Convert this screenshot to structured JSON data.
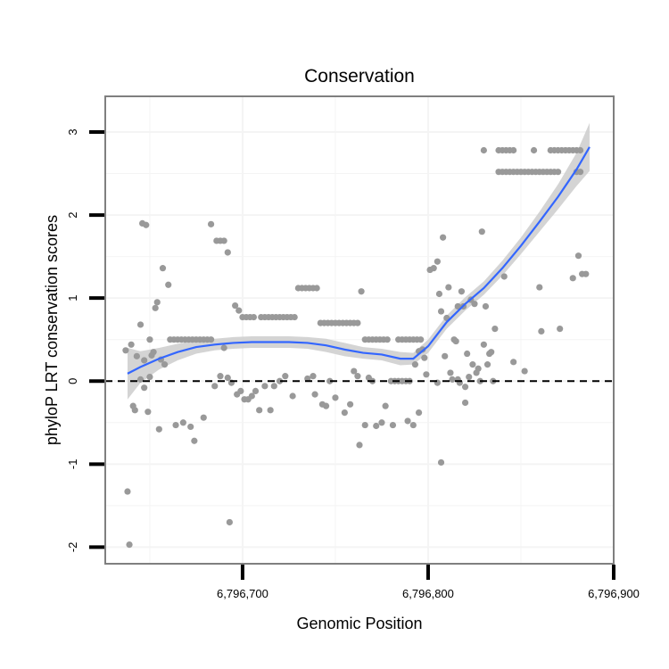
{
  "chart_data": {
    "type": "scatter",
    "title": "Conservation",
    "xlabel": "Genomic Position",
    "ylabel": "phyloP LRT conservation scores",
    "xlim": [
      6796626,
      6796900
    ],
    "ylim": [
      -2.2,
      3.43
    ],
    "x_ticks": [
      6796700,
      6796800,
      6796900
    ],
    "x_tick_labels": [
      "6,796,700",
      "6,796,800",
      "6,796,900"
    ],
    "y_ticks": [
      -2,
      -1,
      0,
      1,
      2,
      3
    ],
    "y_tick_labels": [
      "-2",
      "-1",
      "0",
      "1",
      "2",
      "3"
    ],
    "reference_line": {
      "y": 0,
      "style": "dashed"
    },
    "colors": {
      "points": "#999999",
      "smooth_line": "#3366FF",
      "ribbon": "#cccccc",
      "grid": "#f4f4f4",
      "panel_border": "#7f7f7f"
    },
    "smooth": {
      "x": [
        6796638,
        6796645,
        6796655,
        6796665,
        6796675,
        6796685,
        6796695,
        6796705,
        6796715,
        6796725,
        6796735,
        6796745,
        6796755,
        6796765,
        6796775,
        6796785,
        6796792,
        6796800,
        6796810,
        6796820,
        6796830,
        6796840,
        6796850,
        6796860,
        6796870,
        6796880,
        6796887
      ],
      "y": [
        0.09,
        0.17,
        0.27,
        0.35,
        0.41,
        0.44,
        0.46,
        0.47,
        0.47,
        0.47,
        0.46,
        0.43,
        0.38,
        0.34,
        0.32,
        0.27,
        0.27,
        0.42,
        0.71,
        0.93,
        1.12,
        1.36,
        1.63,
        1.92,
        2.22,
        2.55,
        2.82
      ],
      "lower": [
        -0.22,
        -0.02,
        0.14,
        0.25,
        0.33,
        0.37,
        0.39,
        0.4,
        0.4,
        0.4,
        0.39,
        0.35,
        0.3,
        0.27,
        0.25,
        0.19,
        0.2,
        0.34,
        0.63,
        0.85,
        1.04,
        1.27,
        1.53,
        1.8,
        2.07,
        2.35,
        2.53
      ],
      "upper": [
        0.4,
        0.36,
        0.4,
        0.45,
        0.49,
        0.51,
        0.53,
        0.54,
        0.54,
        0.54,
        0.53,
        0.51,
        0.46,
        0.41,
        0.39,
        0.35,
        0.34,
        0.5,
        0.79,
        1.01,
        1.2,
        1.45,
        1.73,
        2.04,
        2.37,
        2.75,
        3.11
      ]
    },
    "points": [
      [
        6796638,
        -1.33
      ],
      [
        6796639,
        -1.97
      ],
      [
        6796640,
        0.44
      ],
      [
        6796637,
        0.37
      ],
      [
        6796641,
        -0.3
      ],
      [
        6796642,
        -0.35
      ],
      [
        6796643,
        0.3
      ],
      [
        6796645,
        0.68
      ],
      [
        6796646,
        1.9
      ],
      [
        6796648,
        1.88
      ],
      [
        6796647,
        0.25
      ],
      [
        6796649,
        -0.37
      ],
      [
        6796650,
        0.5
      ],
      [
        6796651,
        0.31
      ],
      [
        6796652,
        0.35
      ],
      [
        6796653,
        0.88
      ],
      [
        6796654,
        0.95
      ],
      [
        6796655,
        -0.58
      ],
      [
        6796657,
        1.36
      ],
      [
        6796660,
        1.16
      ],
      [
        6796645,
        0.02
      ],
      [
        6796650,
        0.05
      ],
      [
        6796647,
        -0.08
      ],
      [
        6796658,
        0.2
      ],
      [
        6796656,
        0.26
      ],
      [
        6796661,
        0.5
      ],
      [
        6796663,
        0.5
      ],
      [
        6796665,
        0.5
      ],
      [
        6796667,
        0.5
      ],
      [
        6796669,
        0.5
      ],
      [
        6796671,
        0.5
      ],
      [
        6796673,
        0.5
      ],
      [
        6796675,
        0.5
      ],
      [
        6796677,
        0.5
      ],
      [
        6796679,
        0.5
      ],
      [
        6796681,
        0.5
      ],
      [
        6796683,
        0.5
      ],
      [
        6796664,
        -0.53
      ],
      [
        6796668,
        -0.5
      ],
      [
        6796672,
        -0.55
      ],
      [
        6796674,
        -0.72
      ],
      [
        6796679,
        -0.44
      ],
      [
        6796683,
        1.89
      ],
      [
        6796686,
        1.69
      ],
      [
        6796688,
        1.69
      ],
      [
        6796690,
        1.69
      ],
      [
        6796692,
        1.55
      ],
      [
        6796685,
        -0.06
      ],
      [
        6796688,
        0.06
      ],
      [
        6796690,
        0.4
      ],
      [
        6796692,
        0.04
      ],
      [
        6796694,
        -0.02
      ],
      [
        6796693,
        -1.7
      ],
      [
        6796696,
        0.91
      ],
      [
        6796698,
        0.85
      ],
      [
        6796697,
        -0.16
      ],
      [
        6796699,
        -0.12
      ],
      [
        6796701,
        -0.22
      ],
      [
        6796703,
        -0.22
      ],
      [
        6796705,
        -0.18
      ],
      [
        6796707,
        -0.12
      ],
      [
        6796709,
        -0.35
      ],
      [
        6796712,
        -0.06
      ],
      [
        6796715,
        -0.35
      ],
      [
        6796700,
        0.77
      ],
      [
        6796702,
        0.77
      ],
      [
        6796704,
        0.77
      ],
      [
        6796706,
        0.77
      ],
      [
        6796710,
        0.77
      ],
      [
        6796712,
        0.77
      ],
      [
        6796714,
        0.77
      ],
      [
        6796716,
        0.77
      ],
      [
        6796718,
        0.77
      ],
      [
        6796720,
        0.77
      ],
      [
        6796722,
        0.77
      ],
      [
        6796724,
        0.77
      ],
      [
        6796726,
        0.77
      ],
      [
        6796728,
        0.77
      ],
      [
        6796717,
        -0.06
      ],
      [
        6796720,
        0.0
      ],
      [
        6796723,
        0.06
      ],
      [
        6796727,
        -0.18
      ],
      [
        6796730,
        1.12
      ],
      [
        6796732,
        1.12
      ],
      [
        6796734,
        1.12
      ],
      [
        6796736,
        1.12
      ],
      [
        6796738,
        1.12
      ],
      [
        6796740,
        1.12
      ],
      [
        6796735,
        0.03
      ],
      [
        6796738,
        0.06
      ],
      [
        6796739,
        -0.16
      ],
      [
        6796743,
        -0.28
      ],
      [
        6796745,
        -0.3
      ],
      [
        6796742,
        0.7
      ],
      [
        6796744,
        0.7
      ],
      [
        6796746,
        0.7
      ],
      [
        6796748,
        0.7
      ],
      [
        6796750,
        0.7
      ],
      [
        6796752,
        0.7
      ],
      [
        6796754,
        0.7
      ],
      [
        6796756,
        0.7
      ],
      [
        6796758,
        0.7
      ],
      [
        6796760,
        0.7
      ],
      [
        6796762,
        0.7
      ],
      [
        6796747,
        0.0
      ],
      [
        6796750,
        -0.2
      ],
      [
        6796755,
        -0.38
      ],
      [
        6796758,
        -0.28
      ],
      [
        6796760,
        0.12
      ],
      [
        6796762,
        0.06
      ],
      [
        6796764,
        1.08
      ],
      [
        6796763,
        -0.77
      ],
      [
        6796766,
        -0.53
      ],
      [
        6796766,
        0.5
      ],
      [
        6796768,
        0.5
      ],
      [
        6796770,
        0.5
      ],
      [
        6796772,
        0.5
      ],
      [
        6796774,
        0.5
      ],
      [
        6796776,
        0.5
      ],
      [
        6796778,
        0.5
      ],
      [
        6796768,
        0.04
      ],
      [
        6796770,
        0.0
      ],
      [
        6796772,
        -0.54
      ],
      [
        6796775,
        -0.5
      ],
      [
        6796777,
        -0.3
      ],
      [
        6796780,
        0.0
      ],
      [
        6796782,
        0.0
      ],
      [
        6796784,
        0.0
      ],
      [
        6796786,
        0.0
      ],
      [
        6796788,
        0.0
      ],
      [
        6796790,
        0.0
      ],
      [
        6796784,
        0.5
      ],
      [
        6796786,
        0.5
      ],
      [
        6796788,
        0.5
      ],
      [
        6796790,
        0.5
      ],
      [
        6796792,
        0.5
      ],
      [
        6796794,
        0.5
      ],
      [
        6796796,
        0.5
      ],
      [
        6796781,
        -0.53
      ],
      [
        6796789,
        -0.48
      ],
      [
        6796792,
        -0.53
      ],
      [
        6796795,
        -0.38
      ],
      [
        6796793,
        0.2
      ],
      [
        6796795,
        0.36
      ],
      [
        6796797,
        0.38
      ],
      [
        6796798,
        0.28
      ],
      [
        6796799,
        0.08
      ],
      [
        6796801,
        1.34
      ],
      [
        6796803,
        1.36
      ],
      [
        6796805,
        1.44
      ],
      [
        6796806,
        1.05
      ],
      [
        6796808,
        1.73
      ],
      [
        6796807,
        0.84
      ],
      [
        6796805,
        -0.02
      ],
      [
        6796807,
        -0.98
      ],
      [
        6796809,
        0.3
      ],
      [
        6796810,
        0.76
      ],
      [
        6796811,
        1.13
      ],
      [
        6796812,
        0.1
      ],
      [
        6796813,
        0.02
      ],
      [
        6796814,
        0.5
      ],
      [
        6796815,
        0.48
      ],
      [
        6796816,
        0.9
      ],
      [
        6796818,
        1.08
      ],
      [
        6796819,
        0.9
      ],
      [
        6796817,
        -0.02
      ],
      [
        6796820,
        -0.07
      ],
      [
        6796821,
        0.33
      ],
      [
        6796822,
        0.05
      ],
      [
        6796823,
        0.98
      ],
      [
        6796824,
        0.2
      ],
      [
        6796825,
        0.93
      ],
      [
        6796826,
        0.1
      ],
      [
        6796827,
        0.15
      ],
      [
        6796828,
        0.0
      ],
      [
        6796829,
        1.8
      ],
      [
        6796830,
        0.44
      ],
      [
        6796831,
        0.9
      ],
      [
        6796832,
        0.2
      ],
      [
        6796833,
        0.33
      ],
      [
        6796834,
        0.35
      ],
      [
        6796835,
        0.0
      ],
      [
        6796836,
        0.63
      ],
      [
        6796820,
        -0.26
      ],
      [
        6796816,
        0.02
      ],
      [
        6796830,
        2.78
      ],
      [
        6796838,
        2.78
      ],
      [
        6796840,
        2.78
      ],
      [
        6796842,
        2.78
      ],
      [
        6796844,
        2.78
      ],
      [
        6796846,
        2.78
      ],
      [
        6796857,
        2.78
      ],
      [
        6796866,
        2.78
      ],
      [
        6796868,
        2.78
      ],
      [
        6796870,
        2.78
      ],
      [
        6796872,
        2.78
      ],
      [
        6796874,
        2.78
      ],
      [
        6796876,
        2.78
      ],
      [
        6796878,
        2.78
      ],
      [
        6796880,
        2.78
      ],
      [
        6796882,
        2.78
      ],
      [
        6796838,
        2.52
      ],
      [
        6796840,
        2.52
      ],
      [
        6796842,
        2.52
      ],
      [
        6796844,
        2.52
      ],
      [
        6796846,
        2.52
      ],
      [
        6796848,
        2.52
      ],
      [
        6796850,
        2.52
      ],
      [
        6796852,
        2.52
      ],
      [
        6796854,
        2.52
      ],
      [
        6796856,
        2.52
      ],
      [
        6796858,
        2.52
      ],
      [
        6796860,
        2.52
      ],
      [
        6796862,
        2.52
      ],
      [
        6796864,
        2.52
      ],
      [
        6796866,
        2.52
      ],
      [
        6796868,
        2.52
      ],
      [
        6796870,
        2.52
      ],
      [
        6796880,
        2.52
      ],
      [
        6796882,
        2.52
      ],
      [
        6796841,
        1.26
      ],
      [
        6796846,
        0.23
      ],
      [
        6796852,
        0.12
      ],
      [
        6796860,
        1.13
      ],
      [
        6796861,
        0.6
      ],
      [
        6796871,
        0.63
      ],
      [
        6796878,
        1.24
      ],
      [
        6796881,
        1.51
      ],
      [
        6796883,
        1.29
      ],
      [
        6796885,
        1.29
      ]
    ]
  }
}
